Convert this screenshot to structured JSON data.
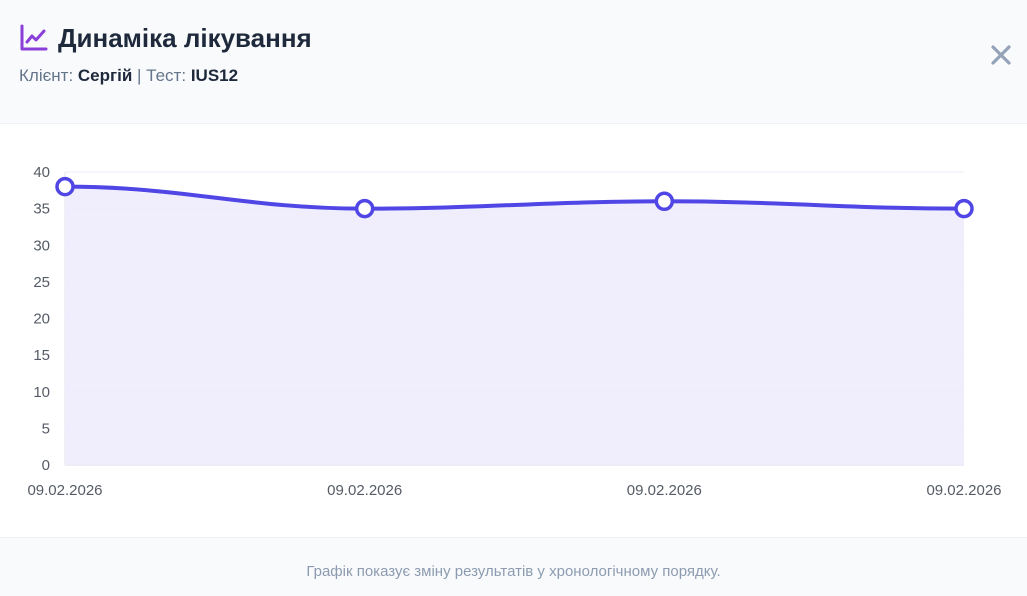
{
  "header": {
    "title": "Динаміка лікування",
    "title_icon": "chart-line-icon",
    "client_label": "Клієнт:",
    "client_name": "Сергій",
    "separator": "|",
    "test_label": "Тест:",
    "test_name": "IUS12",
    "close_icon": "close-icon"
  },
  "footer": {
    "note": "Графік показує зміну результатів у хронологічному порядку."
  },
  "colors": {
    "accent": "#8b3fd9",
    "line": "#4f46e5",
    "fill": "#edebfd",
    "close": "#94a3b8"
  },
  "chart_data": {
    "type": "area",
    "categories": [
      "09.02.2026",
      "09.02.2026",
      "09.02.2026",
      "09.02.2026"
    ],
    "values": [
      38,
      35,
      36,
      35
    ],
    "title": "",
    "xlabel": "",
    "ylabel": "",
    "ylim": [
      0,
      40
    ],
    "yticks": [
      0,
      5,
      10,
      15,
      20,
      25,
      30,
      35,
      40
    ],
    "grid": true,
    "legend": "none"
  }
}
